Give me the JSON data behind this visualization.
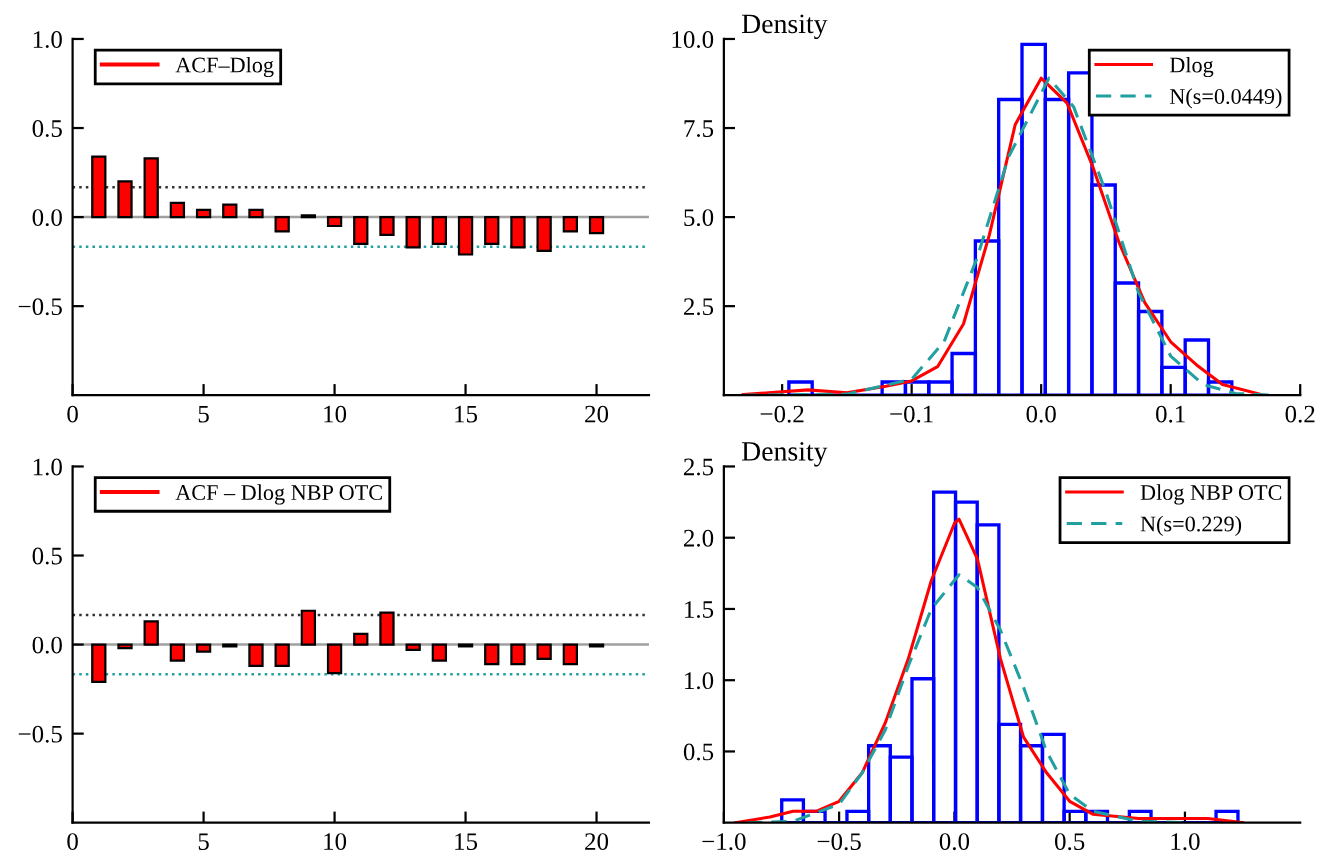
{
  "chart_data": [
    {
      "type": "bar",
      "x": [
        1,
        2,
        3,
        4,
        5,
        6,
        7,
        8,
        9,
        10,
        11,
        12,
        13,
        14,
        15,
        16,
        17,
        18,
        19,
        20
      ],
      "series": [
        {
          "name": "ACF–Dlog",
          "color": "#ff0000",
          "values": [
            0.34,
            0.2,
            0.33,
            0.08,
            0.04,
            0.07,
            0.04,
            -0.08,
            0.01,
            -0.05,
            -0.15,
            -0.1,
            -0.17,
            -0.15,
            -0.21,
            -0.15,
            -0.17,
            -0.19,
            -0.08,
            -0.09
          ]
        }
      ],
      "xlim": [
        0,
        22
      ],
      "xticks": [
        0,
        5,
        10,
        15,
        20
      ],
      "ylim": [
        -1,
        1
      ],
      "yticks": [
        {
          "value": -0.5,
          "label": "−0.5"
        },
        {
          "value": 0,
          "label": "0.0"
        },
        {
          "value": 0.5,
          "label": "0.5"
        },
        {
          "value": 1,
          "label": "1.0"
        }
      ],
      "ref_lines": [
        {
          "axis": "y",
          "value": 0,
          "label": null,
          "color": "#a0a0a0",
          "line_style": "solid"
        },
        {
          "axis": "y",
          "value": 0.167,
          "label": null,
          "color": "#333333",
          "line_style": "dotted"
        },
        {
          "axis": "y",
          "value": -0.167,
          "label": null,
          "color": "#20a0a0",
          "line_style": "dotted"
        }
      ],
      "legend": "top left",
      "grid": false
    },
    {
      "type": "histogram",
      "ylabel": "Density",
      "bins": [
        -0.1948,
        -0.1768,
        -0.1588,
        -0.1408,
        -0.1228,
        -0.1048,
        -0.0868,
        -0.0688,
        -0.0508,
        -0.0328,
        -0.0148,
        0.0032,
        0.0212,
        0.0392,
        0.0572,
        0.0752,
        0.0932,
        0.1112,
        0.1292,
        0.1472
      ],
      "values": [
        0.37,
        0,
        0,
        0,
        0.37,
        0.37,
        0.37,
        1.17,
        4.33,
        8.3,
        9.85,
        8.3,
        9.05,
        5.9,
        3.15,
        2.35,
        0.78,
        1.55,
        0.37
      ],
      "color": "#0000ff",
      "series": [
        {
          "type": "line",
          "name": "Dlog",
          "color": "#ff0000",
          "line_style": "solid",
          "x": [
            -0.23,
            -0.18,
            -0.15,
            -0.12,
            -0.1,
            -0.08,
            -0.06,
            -0.04,
            -0.02,
            0.0,
            0.02,
            0.04,
            0.06,
            0.08,
            0.1,
            0.12,
            0.14,
            0.17
          ],
          "values": [
            0.02,
            0.15,
            0.07,
            0.25,
            0.4,
            0.8,
            2.0,
            4.5,
            7.6,
            8.9,
            8.2,
            6.4,
            4.3,
            2.6,
            1.5,
            0.85,
            0.3,
            0.02
          ]
        },
        {
          "type": "line",
          "name": "N(s=0.0449)",
          "color": "#20a0a0",
          "line_style": "dashed",
          "x": [
            -0.23,
            -0.15,
            -0.1,
            -0.075,
            -0.05,
            -0.025,
            0.006,
            0.025,
            0.05,
            0.075,
            0.1,
            0.125,
            0.15,
            0.18
          ],
          "values": [
            0.0,
            0.03,
            0.45,
            1.5,
            3.8,
            6.7,
            8.9,
            8.1,
            5.7,
            2.9,
            1.1,
            0.3,
            0.05,
            0.0
          ]
        }
      ],
      "xlim": [
        -0.245,
        0.2
      ],
      "xticks": [
        {
          "value": -0.2,
          "label": "−0.2"
        },
        {
          "value": -0.1,
          "label": "−0.1"
        },
        {
          "value": 0,
          "label": "0.0"
        },
        {
          "value": 0.1,
          "label": "0.1"
        },
        {
          "value": 0.2,
          "label": "0.2"
        }
      ],
      "ylim": [
        0,
        10
      ],
      "yticks": [
        {
          "value": 2.5,
          "label": "2.5"
        },
        {
          "value": 5,
          "label": "5.0"
        },
        {
          "value": 7.5,
          "label": "7.5"
        },
        {
          "value": 10,
          "label": "10.0"
        }
      ],
      "legend": "top right",
      "grid": false
    },
    {
      "type": "bar",
      "x": [
        1,
        2,
        3,
        4,
        5,
        6,
        7,
        8,
        9,
        10,
        11,
        12,
        13,
        14,
        15,
        16,
        17,
        18,
        19,
        20
      ],
      "series": [
        {
          "name": "ACF – Dlog NBP OTC",
          "color": "#ff0000",
          "values": [
            -0.21,
            -0.02,
            0.13,
            -0.09,
            -0.04,
            -0.01,
            -0.12,
            -0.12,
            0.19,
            -0.16,
            0.06,
            0.18,
            -0.03,
            -0.09,
            -0.01,
            -0.11,
            -0.11,
            -0.08,
            -0.11,
            -0.01
          ]
        }
      ],
      "xlim": [
        0,
        22
      ],
      "xticks": [
        0,
        5,
        10,
        15,
        20
      ],
      "ylim": [
        -1,
        1
      ],
      "yticks": [
        {
          "value": -0.5,
          "label": "−0.5"
        },
        {
          "value": 0,
          "label": "0.0"
        },
        {
          "value": 0.5,
          "label": "0.5"
        },
        {
          "value": 1,
          "label": "1.0"
        }
      ],
      "ref_lines": [
        {
          "axis": "y",
          "value": 0,
          "label": null,
          "color": "#a0a0a0",
          "line_style": "solid"
        },
        {
          "axis": "y",
          "value": 0.166,
          "label": null,
          "color": "#333333",
          "line_style": "dotted"
        },
        {
          "axis": "y",
          "value": -0.166,
          "label": null,
          "color": "#20a0a0",
          "line_style": "dotted"
        }
      ],
      "legend": "top left",
      "grid": false
    },
    {
      "type": "histogram",
      "ylabel": "Density",
      "bins": [
        -0.749,
        -0.655,
        -0.561,
        -0.466,
        -0.372,
        -0.278,
        -0.184,
        -0.09,
        0.005,
        0.099,
        0.193,
        0.287,
        0.382,
        0.476,
        0.57,
        0.664,
        0.759,
        0.853,
        0.947,
        1.041,
        1.135,
        1.23
      ],
      "values": [
        0.16,
        0.08,
        0,
        0.08,
        0.54,
        0.46,
        1.01,
        2.32,
        2.25,
        2.09,
        0.69,
        0.54,
        0.62,
        0.08,
        0.08,
        0,
        0.08,
        0,
        0,
        0,
        0.08
      ],
      "color": "#0000ff",
      "series": [
        {
          "type": "line",
          "name": "Dlog NBP OTC",
          "color": "#ff0000",
          "line_style": "solid",
          "x": [
            -0.95,
            -0.8,
            -0.7,
            -0.6,
            -0.5,
            -0.4,
            -0.3,
            -0.2,
            -0.1,
            0.0,
            0.02,
            0.1,
            0.2,
            0.3,
            0.4,
            0.5,
            0.6,
            0.8,
            1.0,
            1.1,
            1.25
          ],
          "values": [
            0.0,
            0.04,
            0.08,
            0.08,
            0.15,
            0.35,
            0.7,
            1.15,
            1.7,
            2.1,
            2.13,
            1.85,
            1.15,
            0.6,
            0.35,
            0.15,
            0.06,
            0.03,
            0.03,
            0.03,
            0.0
          ]
        },
        {
          "type": "line",
          "name": "N(s=0.229)",
          "color": "#20a0a0",
          "line_style": "dashed",
          "x": [
            -0.9,
            -0.7,
            -0.5,
            -0.4,
            -0.3,
            -0.2,
            -0.1,
            0.02,
            0.1,
            0.2,
            0.3,
            0.4,
            0.5,
            0.6,
            0.8,
            1.0
          ],
          "values": [
            0.0,
            0.01,
            0.13,
            0.35,
            0.65,
            1.1,
            1.5,
            1.74,
            1.65,
            1.35,
            0.95,
            0.5,
            0.2,
            0.08,
            0.01,
            0.0
          ]
        }
      ],
      "xlim": [
        -1.0,
        1.5
      ],
      "xticks": [
        {
          "value": -1,
          "label": "−1.0"
        },
        {
          "value": -0.5,
          "label": "−0.5"
        },
        {
          "value": 0,
          "label": "0.0"
        },
        {
          "value": 0.5,
          "label": "0.5"
        },
        {
          "value": 1,
          "label": "1.0"
        }
      ],
      "ylim": [
        0,
        2.5
      ],
      "yticks": [
        {
          "value": 0.5,
          "label": "0.5"
        },
        {
          "value": 1,
          "label": "1.0"
        },
        {
          "value": 1.5,
          "label": "1.5"
        },
        {
          "value": 2,
          "label": "2.0"
        },
        {
          "value": 2.5,
          "label": "2.5"
        }
      ],
      "legend": "top right",
      "grid": false
    }
  ]
}
